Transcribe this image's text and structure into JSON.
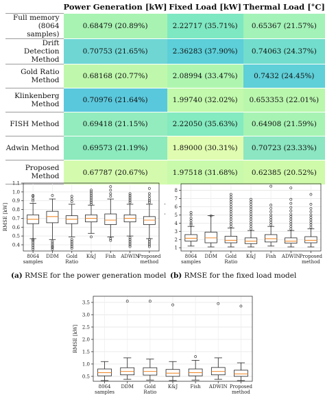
{
  "table": {
    "headers": [
      "",
      "Power Generation [kW]",
      "Fixed Load [kW]",
      "Thermal Load [°C]"
    ],
    "rows": [
      {
        "method": "Full memory (8064 samples)",
        "cells": [
          {
            "text": "0.68479 (20.89%)",
            "color": "#a8f3b2"
          },
          {
            "text": "2.22717 (35.71%)",
            "color": "#7ee8c2"
          },
          {
            "text": "0.65367 (21.57%)",
            "color": "#a3f2b7"
          }
        ]
      },
      {
        "method": "Drift Detection Method",
        "cells": [
          {
            "text": "0.70753 (21.65%)",
            "color": "#6fd6d4"
          },
          {
            "text": "2.36283 (37.90%)",
            "color": "#5ccfd9"
          },
          {
            "text": "0.74063 (24.37%)",
            "color": "#72ddcc"
          }
        ]
      },
      {
        "method": "Gold Ratio Method",
        "cells": [
          {
            "text": "0.68168 (20.77%)",
            "color": "#bff8ac"
          },
          {
            "text": "2.08994 (33.47%)",
            "color": "#aef6b0"
          },
          {
            "text": "0.7432 (24.45%)",
            "color": "#5fcfd8"
          }
        ]
      },
      {
        "method": "Klinkenberg Method",
        "cells": [
          {
            "text": "0.70976 (21.64%)",
            "color": "#5ac8dc"
          },
          {
            "text": "1.99740 (32.02%)",
            "color": "#c2f9ac"
          },
          {
            "text": "0.653353 (22.01%)",
            "color": "#b9f7ad"
          }
        ]
      },
      {
        "method": "FISH Method",
        "cells": [
          {
            "text": "0.69418 (21.15%)",
            "color": "#93ecbd"
          },
          {
            "text": "2.22050 (35.63%)",
            "color": "#84eabf"
          },
          {
            "text": "0.64908 (21.59%)",
            "color": "#a7f3b3"
          }
        ]
      },
      {
        "method": "Adwin Method",
        "cells": [
          {
            "text": "0.69573 (21.19%)",
            "color": "#8ceabd"
          },
          {
            "text": "1.89000 (30.31%)",
            "color": "#e0fcb0"
          },
          {
            "text": "0.70723 (23.33%)",
            "color": "#8be6c1"
          }
        ]
      },
      {
        "method": "Proposed Method",
        "cells": [
          {
            "text": "0.67787 (20.67%)",
            "color": "#d4fbad"
          },
          {
            "text": "1.97518 (31.68%)",
            "color": "#c9faab"
          },
          {
            "text": "0.62385 (20.52%)",
            "color": "#cffaaa"
          }
        ]
      }
    ]
  },
  "chart_data": [
    {
      "type": "box",
      "caption_label": "(a)",
      "caption_text": "RMSE for the power generation model",
      "ylabel": "RMSE [kW]",
      "ylim": [
        0.33,
        1.1
      ],
      "yticks": [
        "0.4",
        "0.5",
        "0.6",
        "0.7",
        "0.8",
        "0.9",
        "1.0",
        "1.1"
      ],
      "categories": [
        "8064 samples",
        "DDM",
        "Gold Ratio",
        "K&J",
        "Fish",
        "ADWIN",
        "Proposed method"
      ],
      "boxes": [
        {
          "whislo": 0.47,
          "q1": 0.64,
          "med": 0.69,
          "q3": 0.74,
          "whishi": 0.87,
          "fliers": [
            0.35,
            0.37,
            0.39,
            0.41,
            0.43,
            0.45,
            0.46,
            0.9,
            0.92,
            0.95,
            0.96
          ]
        },
        {
          "whislo": 0.46,
          "q1": 0.65,
          "med": 0.72,
          "q3": 0.78,
          "whishi": 0.92,
          "fliers": [
            0.35,
            0.37,
            0.38,
            0.4,
            0.42,
            0.44,
            0.96
          ]
        },
        {
          "whislo": 0.49,
          "q1": 0.64,
          "med": 0.69,
          "q3": 0.73,
          "whishi": 0.86,
          "fliers": [
            0.36,
            0.38,
            0.4,
            0.42,
            0.44,
            0.46,
            0.89,
            0.92,
            0.95
          ]
        },
        {
          "whislo": 0.53,
          "q1": 0.66,
          "med": 0.7,
          "q3": 0.74,
          "whishi": 0.85,
          "fliers": [
            0.49,
            0.86,
            0.88,
            0.9,
            0.92,
            0.94,
            0.96,
            0.98,
            1.0,
            1.02
          ]
        },
        {
          "whislo": 0.49,
          "q1": 0.63,
          "med": 0.68,
          "q3": 0.75,
          "whishi": 0.92,
          "fliers": [
            0.45,
            0.47,
            0.95,
            0.98,
            1.02,
            1.06
          ]
        },
        {
          "whislo": 0.5,
          "q1": 0.66,
          "med": 0.7,
          "q3": 0.74,
          "whishi": 0.86,
          "fliers": [
            0.38,
            0.4,
            0.42,
            0.44,
            0.46,
            0.48,
            0.88,
            0.9,
            0.92,
            0.94,
            0.96,
            0.98
          ]
        },
        {
          "whislo": 0.47,
          "q1": 0.63,
          "med": 0.68,
          "q3": 0.72,
          "whishi": 0.86,
          "fliers": [
            0.38,
            0.4,
            0.42,
            0.44,
            0.46,
            0.88,
            0.9,
            0.92,
            0.95,
            0.98,
            1.04
          ]
        }
      ]
    },
    {
      "type": "box",
      "caption_label": "(b)",
      "caption_text": "RMSE for the fixed load model",
      "ylabel": "RMSE [kW]",
      "ylim": [
        0.6,
        8.8
      ],
      "yticks": [
        "1",
        "2",
        "3",
        "4",
        "5",
        "6",
        "7",
        "8"
      ],
      "categories": [
        "8064 samples",
        "DDM",
        "Gold Ratio",
        "K&J",
        "Fish",
        "ADWIN",
        "Proposed method"
      ],
      "boxes": [
        {
          "whislo": 1.2,
          "q1": 1.8,
          "med": 2.15,
          "q3": 2.6,
          "whishi": 3.6,
          "fliers": [
            3.8,
            4.0,
            4.3,
            4.6,
            5.0,
            5.3
          ]
        },
        {
          "whislo": 1.1,
          "q1": 1.6,
          "med": 2.2,
          "q3": 2.9,
          "whishi": 4.9,
          "fliers": [
            4.9
          ]
        },
        {
          "whislo": 1.1,
          "q1": 1.6,
          "med": 1.9,
          "q3": 2.4,
          "whishi": 3.4,
          "fliers": [
            3.6,
            3.9,
            4.2,
            4.5,
            4.8,
            5.1,
            5.4,
            5.7,
            6.0,
            6.3,
            6.6,
            6.9,
            7.2,
            7.5
          ]
        },
        {
          "whislo": 1.1,
          "q1": 1.5,
          "med": 1.8,
          "q3": 2.2,
          "whishi": 3.1,
          "fliers": [
            3.3,
            3.6,
            3.9,
            4.2,
            4.5,
            4.8,
            5.1,
            5.4,
            5.7,
            6.0,
            6.3,
            6.6,
            6.9
          ]
        },
        {
          "whislo": 1.2,
          "q1": 1.7,
          "med": 2.1,
          "q3": 2.6,
          "whishi": 3.6,
          "fliers": [
            3.8,
            4.1,
            4.4,
            4.7,
            5.0,
            5.4,
            5.8,
            6.2,
            8.5
          ]
        },
        {
          "whislo": 1.1,
          "q1": 1.55,
          "med": 1.8,
          "q3": 2.2,
          "whishi": 3.1,
          "fliers": [
            3.3,
            3.6,
            3.9,
            4.2,
            4.5,
            4.8,
            5.1,
            5.5,
            5.9,
            6.4,
            6.9,
            8.3
          ]
        },
        {
          "whislo": 1.1,
          "q1": 1.6,
          "med": 1.9,
          "q3": 2.35,
          "whishi": 3.3,
          "fliers": [
            3.5,
            3.8,
            4.1,
            4.4,
            4.7,
            5.0,
            5.4,
            5.8,
            6.3,
            7.5
          ]
        }
      ]
    },
    {
      "type": "box",
      "caption_label": "",
      "caption_text": "",
      "ylabel": "RMSE [kW]",
      "ylim": [
        0.3,
        3.75
      ],
      "yticks": [
        "0.5",
        "1.0",
        "1.5",
        "2.0",
        "2.5",
        "3.0",
        "3.5"
      ],
      "categories": [
        "8064 samples",
        "DDM",
        "Gold Ratio",
        "K&J",
        "Fish",
        "ADWIN",
        "Proposed method"
      ],
      "boxes": [
        {
          "whislo": 0.33,
          "q1": 0.52,
          "med": 0.65,
          "q3": 0.8,
          "whishi": 1.1,
          "fliers": []
        },
        {
          "whislo": 0.38,
          "q1": 0.56,
          "med": 0.7,
          "q3": 0.85,
          "whishi": 1.25,
          "fliers": [
            3.55
          ]
        },
        {
          "whislo": 0.35,
          "q1": 0.55,
          "med": 0.7,
          "q3": 0.85,
          "whishi": 1.2,
          "fliers": [
            3.55
          ]
        },
        {
          "whislo": 0.33,
          "q1": 0.5,
          "med": 0.63,
          "q3": 0.78,
          "whishi": 1.1,
          "fliers": [
            3.4
          ]
        },
        {
          "whislo": 0.35,
          "q1": 0.52,
          "med": 0.65,
          "q3": 0.8,
          "whishi": 1.15,
          "fliers": [
            1.3
          ]
        },
        {
          "whislo": 0.38,
          "q1": 0.56,
          "med": 0.7,
          "q3": 0.86,
          "whishi": 1.25,
          "fliers": [
            3.45
          ]
        },
        {
          "whislo": 0.33,
          "q1": 0.5,
          "med": 0.6,
          "q3": 0.75,
          "whishi": 1.05,
          "fliers": [
            3.35
          ]
        }
      ]
    }
  ]
}
